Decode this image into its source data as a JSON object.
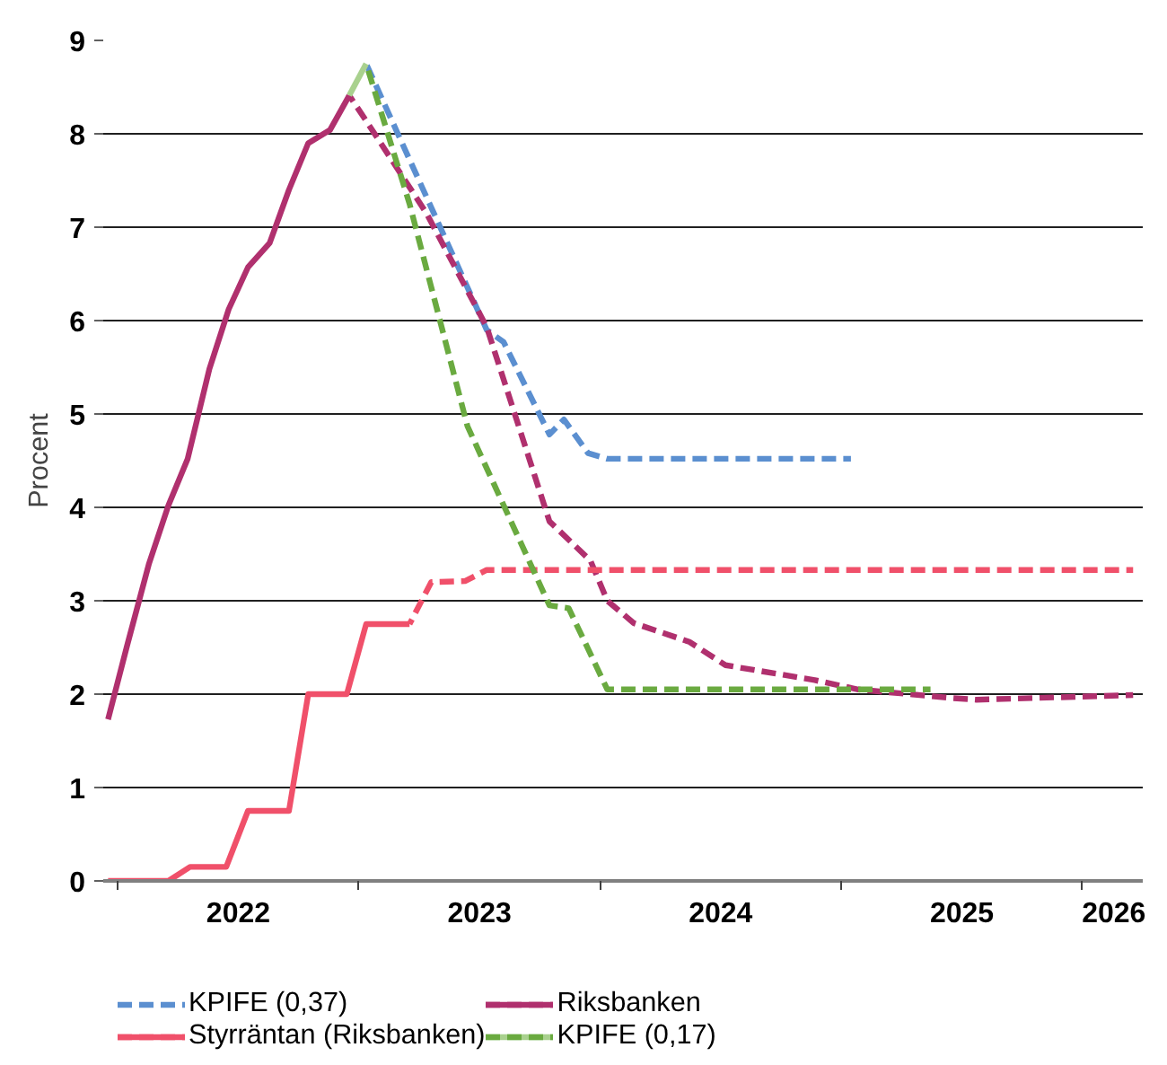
{
  "chart_data": {
    "type": "line",
    "ylabel": "Procent",
    "xlim": [
      2021.94,
      2026.25
    ],
    "ylim": [
      0,
      9
    ],
    "xticks": [
      {
        "value": 2022,
        "label": null
      },
      {
        "value": 2022.5,
        "label": "2022"
      },
      {
        "value": 2023,
        "label": null
      },
      {
        "value": 2023.5,
        "label": "2023"
      },
      {
        "value": 2024,
        "label": null
      },
      {
        "value": 2024.5,
        "label": "2024"
      },
      {
        "value": 2025,
        "label": null
      },
      {
        "value": 2025.5,
        "label": "2025"
      },
      {
        "value": 2026,
        "label": null
      },
      {
        "value": 2026.13,
        "label": "2026"
      }
    ],
    "yticks": [
      0,
      1,
      2,
      3,
      4,
      5,
      6,
      7,
      8,
      9
    ],
    "grid": "y",
    "legend": "bottom",
    "marker": "none",
    "series": [
      {
        "name": "KPIFE (0,37)",
        "color": "#5b8fd0",
        "line_style": "dashed",
        "x": [
          2023.03,
          2023.53,
          2023.6,
          2023.79,
          2023.85,
          2023.95,
          2024.03,
          2025.04
        ],
        "values": [
          8.75,
          5.9,
          5.77,
          4.78,
          4.94,
          4.58,
          4.52,
          4.52
        ]
      },
      {
        "name": "Riksbanken",
        "color": "#b0306e",
        "line_style": "solid",
        "x": [
          2021.96,
          2022.04,
          2022.13,
          2022.21,
          2022.29,
          2022.38,
          2022.46,
          2022.54,
          2022.63,
          2022.71,
          2022.79,
          2022.88,
          2022.96
        ],
        "values": [
          1.73,
          2.53,
          3.4,
          4.02,
          4.52,
          5.48,
          6.12,
          6.57,
          6.83,
          7.4,
          7.9,
          8.04,
          8.41
        ]
      },
      {
        "color": "#b0306e",
        "line_style": "dashed",
        "x": [
          2022.96,
          2023.03,
          2023.28,
          2023.53,
          2023.79,
          2023.96,
          2024.03,
          2024.14,
          2024.37,
          2024.52,
          2024.89,
          2025.07,
          2025.45,
          2025.56,
          2026.21
        ],
        "values": [
          8.41,
          8.14,
          7.15,
          5.93,
          3.85,
          3.43,
          3.0,
          2.76,
          2.56,
          2.31,
          2.15,
          2.05,
          1.96,
          1.94,
          1.99
        ]
      },
      {
        "name": "Styrräntan (Riksbanken)",
        "color": "#f0506a",
        "line_style": "solid",
        "x": [
          2021.96,
          2022.21,
          2022.3,
          2022.45,
          2022.54,
          2022.71,
          2022.79,
          2022.95,
          2023.03,
          2023.21
        ],
        "values": [
          0,
          0,
          0.15,
          0.15,
          0.75,
          0.75,
          2.0,
          2.0,
          2.75,
          2.75
        ]
      },
      {
        "color": "#f0506a",
        "line_style": "dashed",
        "x": [
          2023.21,
          2023.3,
          2023.44,
          2023.53,
          2026.21
        ],
        "values": [
          2.75,
          3.2,
          3.21,
          3.33,
          3.33
        ]
      },
      {
        "name": "KPIFE (0,17)",
        "color": "#a9d18e",
        "line_style": "solid",
        "x": [
          2022.96,
          2023.03
        ],
        "values": [
          8.41,
          8.75
        ]
      },
      {
        "color": "#6aaa40",
        "line_style": "dashed",
        "x": [
          2023.03,
          2023.21,
          2023.45,
          2023.79,
          2023.87,
          2024.03,
          2025.37
        ],
        "values": [
          8.75,
          7.25,
          4.87,
          2.95,
          2.92,
          2.05,
          2.05
        ]
      }
    ]
  }
}
